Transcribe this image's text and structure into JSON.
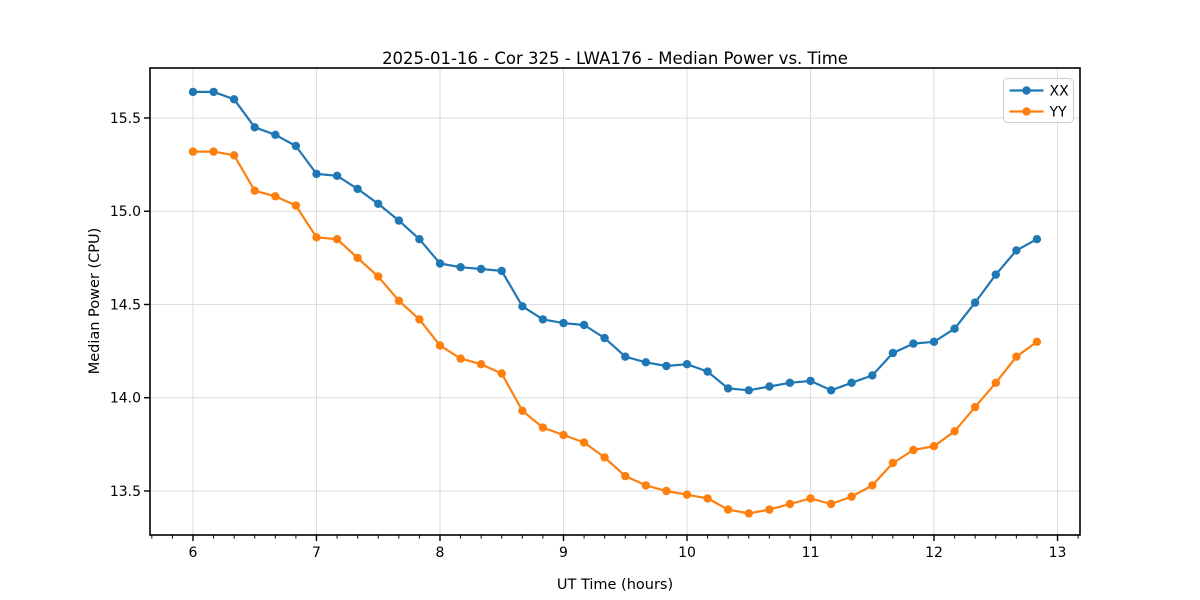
{
  "page": {
    "background": "#ffffff"
  },
  "chart_data": {
    "type": "line",
    "title": "2025-01-16 - Cor 325 - LWA176 - Median Power vs. Time",
    "xlabel": "UT Time (hours)",
    "ylabel": "Median Power (CPU)",
    "xlim": [
      5.652,
      13.182
    ],
    "ylim": [
      13.264,
      15.768
    ],
    "grid": "major-only",
    "grid_color": "#dcdcdc",
    "spine_color": "#000000",
    "legend_position": "upper right",
    "legend_border_color": "#cccccc",
    "marker": "circle",
    "x_minor_interval_hours": 0.1666667,
    "x_ticks": {
      "values": [
        6,
        7,
        8,
        9,
        10,
        11,
        12,
        13
      ],
      "labels": [
        "6",
        "7",
        "8",
        "9",
        "10",
        "11",
        "12",
        "13"
      ]
    },
    "y_ticks": {
      "values": [
        13.5,
        14.0,
        14.5,
        15.0,
        15.5
      ],
      "labels": [
        "13.5",
        "14.0",
        "14.5",
        "15.0",
        "15.5"
      ]
    },
    "x": [
      6.0,
      6.167,
      6.333,
      6.5,
      6.667,
      6.833,
      7.0,
      7.167,
      7.333,
      7.5,
      7.667,
      7.833,
      8.0,
      8.167,
      8.333,
      8.5,
      8.667,
      8.833,
      9.0,
      9.167,
      9.333,
      9.5,
      9.667,
      9.833,
      10.0,
      10.167,
      10.333,
      10.5,
      10.667,
      10.833,
      11.0,
      11.167,
      11.333,
      11.5,
      11.667,
      11.833,
      12.0,
      12.167,
      12.333,
      12.5,
      12.667,
      12.833
    ],
    "series": [
      {
        "name": "XX",
        "color": "#1f77b4",
        "values": [
          15.64,
          15.64,
          15.6,
          15.45,
          15.41,
          15.35,
          15.2,
          15.19,
          15.12,
          15.04,
          14.95,
          14.85,
          14.72,
          14.7,
          14.69,
          14.68,
          14.49,
          14.42,
          14.4,
          14.39,
          14.32,
          14.22,
          14.19,
          14.17,
          14.18,
          14.14,
          14.05,
          14.04,
          14.06,
          14.08,
          14.09,
          14.04,
          14.08,
          14.12,
          14.24,
          14.29,
          14.3,
          14.37,
          14.51,
          14.66,
          14.79,
          14.85
        ]
      },
      {
        "name": "YY",
        "color": "#ff7f0e",
        "values": [
          15.32,
          15.32,
          15.3,
          15.11,
          15.08,
          15.03,
          14.86,
          14.85,
          14.75,
          14.65,
          14.52,
          14.42,
          14.28,
          14.21,
          14.18,
          14.13,
          13.93,
          13.84,
          13.8,
          13.76,
          13.68,
          13.58,
          13.53,
          13.5,
          13.48,
          13.46,
          13.4,
          13.38,
          13.4,
          13.43,
          13.46,
          13.43,
          13.47,
          13.53,
          13.65,
          13.72,
          13.74,
          13.82,
          13.95,
          14.08,
          14.22,
          14.3
        ]
      }
    ]
  }
}
